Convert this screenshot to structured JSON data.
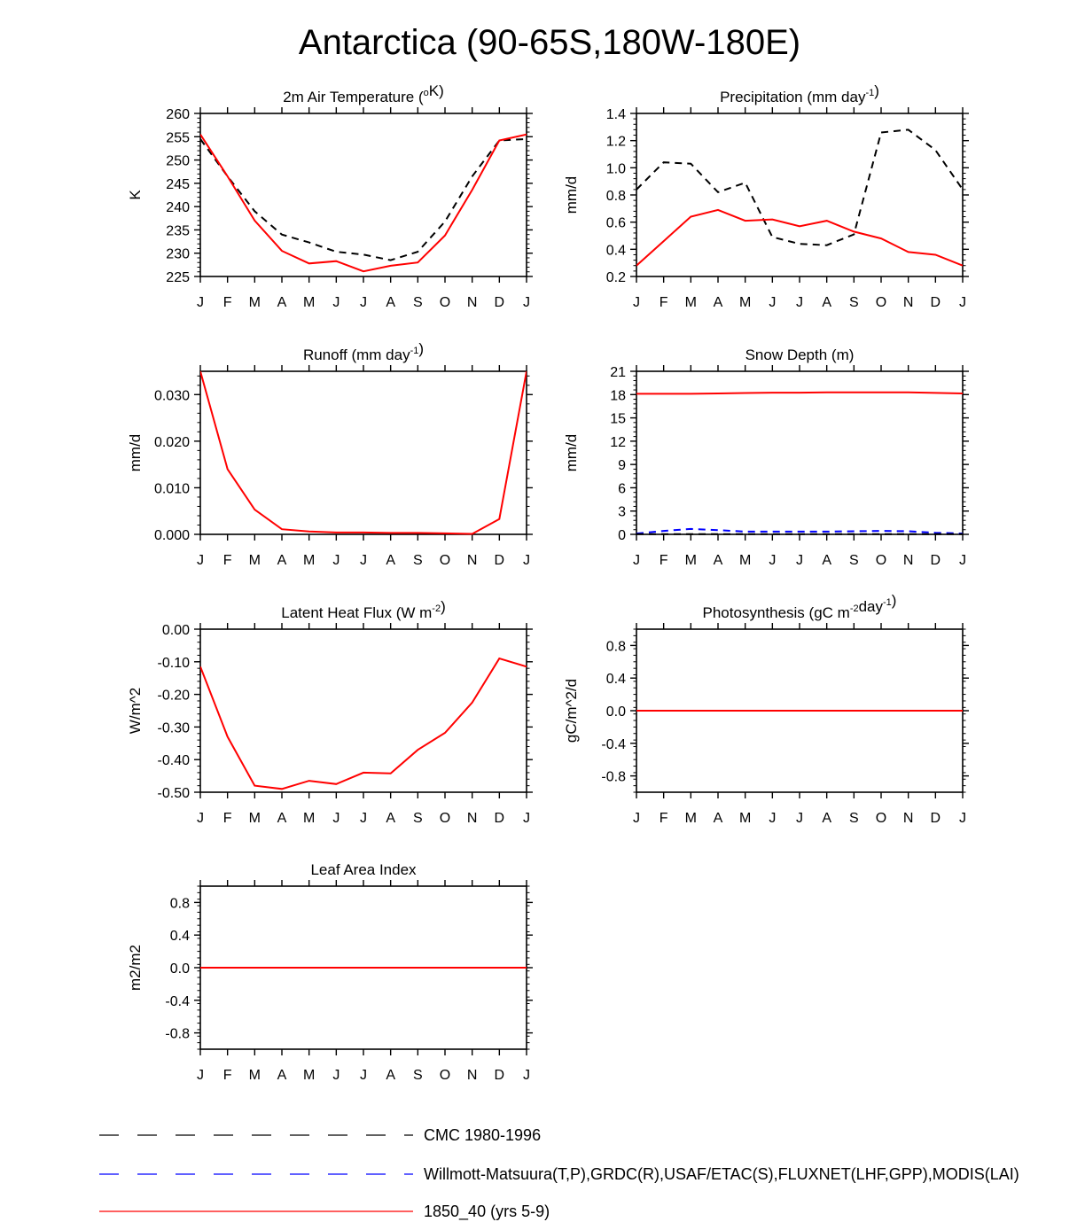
{
  "figure_title": "Antarctica (90-65S,180W-180E)",
  "months": [
    "J",
    "F",
    "M",
    "A",
    "M",
    "J",
    "J",
    "A",
    "S",
    "O",
    "N",
    "D",
    "J"
  ],
  "colors": {
    "obs": "#000000",
    "obs2": "#0000ff",
    "model": "#ff0000"
  },
  "chart_data": [
    {
      "type": "line",
      "title": "2m Air Temperature (°K)",
      "ylabel": "K",
      "ylim": [
        225,
        260
      ],
      "yticks": [
        "225",
        "230",
        "235",
        "240",
        "245",
        "250",
        "255",
        "260"
      ],
      "series": [
        {
          "name": "CMC 1980-1996",
          "style": "dashed",
          "color": "#000000",
          "values": [
            254.5,
            246.5,
            239.0,
            234.0,
            232.3,
            230.3,
            229.7,
            228.5,
            230.3,
            236.8,
            246.5,
            254.2,
            254.5
          ]
        },
        {
          "name": "1850_40 (yrs 5-9)",
          "style": "solid",
          "color": "#ff0000",
          "values": [
            255.5,
            246.5,
            237.0,
            230.5,
            227.8,
            228.3,
            226.1,
            227.3,
            228.0,
            233.8,
            243.6,
            254.2,
            255.5
          ]
        }
      ]
    },
    {
      "type": "line",
      "title": "Precipitation (mm day-1)",
      "ylabel": "mm/d",
      "ylim": [
        0.2,
        1.4
      ],
      "yticks": [
        "0.2",
        "0.4",
        "0.6",
        "0.8",
        "1.0",
        "1.2",
        "1.4"
      ],
      "series": [
        {
          "name": "CMC 1980-1996",
          "style": "dashed",
          "color": "#000000",
          "values": [
            0.84,
            1.04,
            1.03,
            0.82,
            0.89,
            0.49,
            0.44,
            0.43,
            0.51,
            1.26,
            1.28,
            1.13,
            0.84
          ]
        },
        {
          "name": "1850_40 (yrs 5-9)",
          "style": "solid",
          "color": "#ff0000",
          "values": [
            0.28,
            0.46,
            0.64,
            0.69,
            0.61,
            0.62,
            0.57,
            0.61,
            0.53,
            0.48,
            0.38,
            0.36,
            0.28
          ]
        }
      ]
    },
    {
      "type": "line",
      "title": "Runoff (mm day-1)",
      "ylabel": "mm/d",
      "ylim": [
        0,
        0.035
      ],
      "yticks": [
        "0.000",
        "0.010",
        "0.020",
        "0.030"
      ],
      "series": [
        {
          "name": "1850_40 (yrs 5-9)",
          "style": "solid",
          "color": "#ff0000",
          "values": [
            0.035,
            0.014,
            0.0053,
            0.0011,
            0.0006,
            0.0004,
            0.0004,
            0.0003,
            0.0003,
            0.0002,
            0.0001,
            0.0033,
            0.035
          ]
        }
      ]
    },
    {
      "type": "line",
      "title": "Snow Depth (m)",
      "ylabel": "mm/d",
      "ylim": [
        0,
        21
      ],
      "yticks": [
        "0",
        "3",
        "6",
        "9",
        "12",
        "15",
        "18",
        "21"
      ],
      "series": [
        {
          "name": "Willmott-Matsuura(T,P),GRDC(R),USAF/ETAC(S),FLUXNET(LHF,GPP),MODIS(LAI)",
          "style": "dashed",
          "color": "#0000ff",
          "values": [
            0.1,
            0.45,
            0.7,
            0.55,
            0.35,
            0.35,
            0.35,
            0.35,
            0.4,
            0.45,
            0.4,
            0.2,
            0.1
          ]
        },
        {
          "name": "CMC 1980-1996",
          "style": "dashed",
          "color": "#000000",
          "values": [
            0.02,
            0.02,
            0.02,
            0.02,
            0.02,
            0.02,
            0.02,
            0.02,
            0.02,
            0.02,
            0.02,
            0.02,
            0.02
          ]
        },
        {
          "name": "1850_40 (yrs 5-9)",
          "style": "solid",
          "color": "#ff0000",
          "values": [
            18.1,
            18.1,
            18.1,
            18.15,
            18.2,
            18.25,
            18.25,
            18.28,
            18.3,
            18.3,
            18.28,
            18.22,
            18.15
          ]
        }
      ]
    },
    {
      "type": "line",
      "title": "Latent Heat Flux (W m-2)",
      "ylabel": "W/m^2",
      "ylim": [
        -0.5,
        0
      ],
      "yticks": [
        "-0.50",
        "-0.40",
        "-0.30",
        "-0.20",
        "-0.10",
        "0.00"
      ],
      "series": [
        {
          "name": "1850_40 (yrs 5-9)",
          "style": "solid",
          "color": "#ff0000",
          "values": [
            -0.115,
            -0.33,
            -0.48,
            -0.49,
            -0.465,
            -0.475,
            -0.44,
            -0.442,
            -0.37,
            -0.318,
            -0.225,
            -0.09,
            -0.115
          ]
        }
      ]
    },
    {
      "type": "line",
      "title": "Photosynthesis (gC m-2day-1)",
      "ylabel": "gC/m^2/d",
      "ylim": [
        -1,
        1
      ],
      "yticks": [
        "-0.8",
        "-0.4",
        "0.0",
        "0.4",
        "0.8"
      ],
      "series": [
        {
          "name": "1850_40 (yrs 5-9)",
          "style": "solid",
          "color": "#ff0000",
          "values": [
            0,
            0,
            0,
            0,
            0,
            0,
            0,
            0,
            0,
            0,
            0,
            0,
            0
          ]
        }
      ]
    },
    {
      "type": "line",
      "title": "Leaf Area Index",
      "ylabel": "m2/m2",
      "ylim": [
        -1,
        1
      ],
      "yticks": [
        "-0.8",
        "-0.4",
        "0.0",
        "0.4",
        "0.8"
      ],
      "series": [
        {
          "name": "1850_40 (yrs 5-9)",
          "style": "solid",
          "color": "#ff0000",
          "values": [
            0,
            0,
            0,
            0,
            0,
            0,
            0,
            0,
            0,
            0,
            0,
            0,
            0
          ]
        }
      ]
    }
  ],
  "legend": [
    {
      "label": "CMC 1980-1996",
      "style": "dashed",
      "color": "#000000"
    },
    {
      "label": "Willmott-Matsuura(T,P),GRDC(R),USAF/ETAC(S),FLUXNET(LHF,GPP),MODIS(LAI)",
      "style": "dashed",
      "color": "#0000ff"
    },
    {
      "label": "1850_40 (yrs 5-9)",
      "style": "solid",
      "color": "#ff0000"
    }
  ]
}
